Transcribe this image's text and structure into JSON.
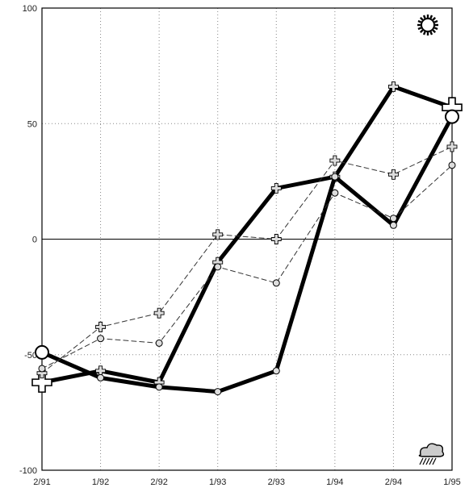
{
  "chart_data": {
    "type": "line",
    "title": "",
    "xlabel": "",
    "ylabel": "",
    "categories": [
      "2/91",
      "1/92",
      "2/92",
      "1/93",
      "2/93",
      "1/94",
      "2/94",
      "1/95"
    ],
    "ylim": [
      -100,
      100
    ],
    "yticks": [
      100,
      50,
      0,
      -50,
      -100
    ],
    "grid": true,
    "zero_line": true,
    "series": [
      {
        "style": "thick",
        "marker": "plus",
        "color": "#000000",
        "values": [
          -62,
          -57,
          -62,
          -10,
          22,
          27,
          66,
          57
        ]
      },
      {
        "style": "thick",
        "marker": "circle",
        "color": "#000000",
        "values": [
          -49,
          -60,
          -64,
          -66,
          -57,
          27,
          6,
          53
        ]
      },
      {
        "style": "dashed",
        "marker": "plus",
        "color": "#333333",
        "values": [
          -58,
          -38,
          -32,
          2,
          0,
          34,
          28,
          40
        ]
      },
      {
        "style": "dashed",
        "marker": "circle",
        "color": "#333333",
        "values": [
          -56,
          -43,
          -45,
          -12,
          -19,
          20,
          9,
          32
        ]
      }
    ],
    "annotations": [
      {
        "icon": "sun-icon",
        "position": "top-right"
      },
      {
        "icon": "rain-cloud-icon",
        "position": "bottom-right"
      }
    ]
  }
}
